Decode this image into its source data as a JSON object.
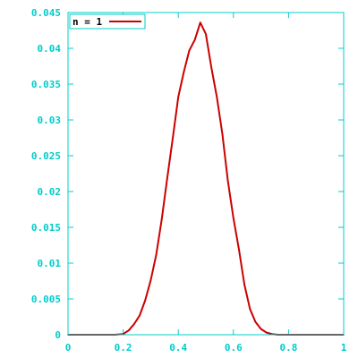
{
  "colors": {
    "axis": "#00cccc",
    "series": "#cc0000",
    "legend_text": "#000000",
    "background": "#ffffff"
  },
  "chart_data": {
    "type": "line",
    "title": "",
    "xlabel": "",
    "ylabel": "",
    "xlim": [
      0,
      1
    ],
    "ylim": [
      0,
      0.045
    ],
    "grid": false,
    "legend_position": "top-left",
    "x_ticks": [
      "0",
      "0.2",
      "0.4",
      "0.6",
      "0.8",
      "1"
    ],
    "y_ticks": [
      "0",
      "0.005",
      "0.01",
      "0.015",
      "0.02",
      "0.025",
      "0.03",
      "0.035",
      "0.04",
      "0.045"
    ],
    "series": [
      {
        "name": "n = 1",
        "color": "#cc0000",
        "x": [
          0.0,
          0.1,
          0.17,
          0.2,
          0.22,
          0.24,
          0.26,
          0.28,
          0.3,
          0.32,
          0.34,
          0.36,
          0.38,
          0.4,
          0.42,
          0.44,
          0.46,
          0.48,
          0.5,
          0.52,
          0.54,
          0.56,
          0.58,
          0.6,
          0.62,
          0.64,
          0.66,
          0.68,
          0.7,
          0.72,
          0.74,
          0.76,
          0.78,
          0.8,
          0.85,
          1.0
        ],
        "y": [
          0.0,
          0.0,
          0.0,
          0.0001,
          0.0006,
          0.0015,
          0.0027,
          0.0048,
          0.0076,
          0.0112,
          0.0161,
          0.0219,
          0.0274,
          0.0332,
          0.0367,
          0.0397,
          0.0412,
          0.0436,
          0.042,
          0.0373,
          0.0332,
          0.028,
          0.0215,
          0.0163,
          0.0119,
          0.007,
          0.0036,
          0.0018,
          0.0008,
          0.0003,
          0.0001,
          0.0,
          0.0,
          0.0,
          0.0,
          0.0
        ]
      }
    ]
  }
}
